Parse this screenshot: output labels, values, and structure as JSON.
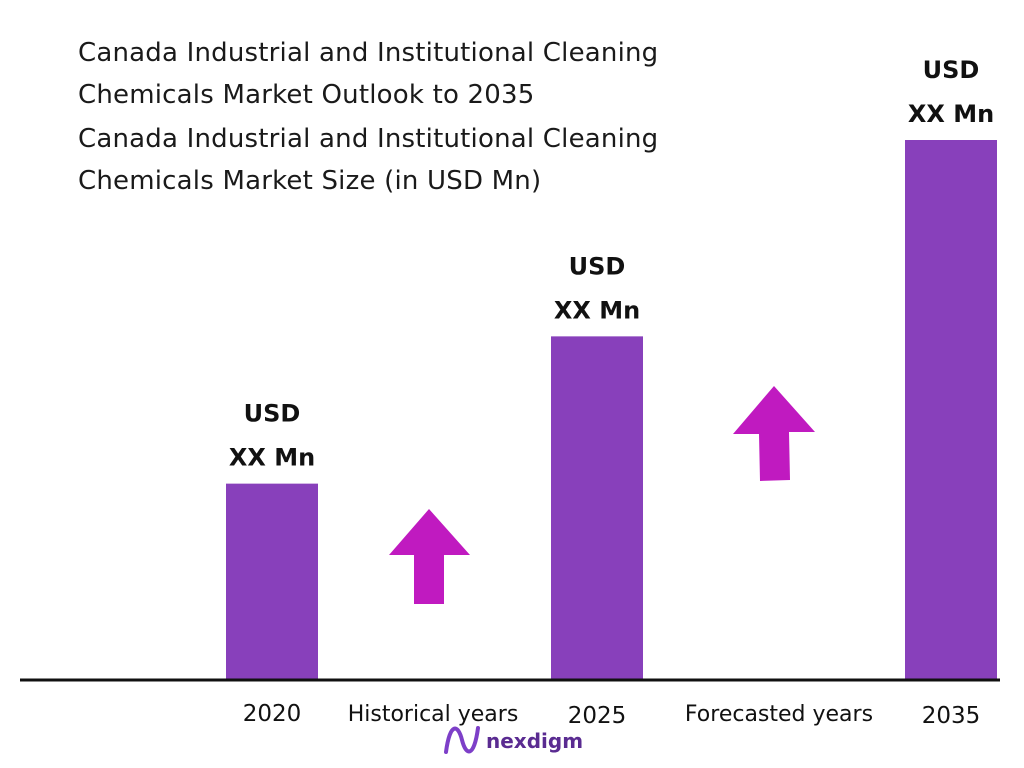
{
  "title": {
    "line1": "Canada Industrial and Institutional Cleaning",
    "line2": "Chemicals Market Outlook to 2035",
    "line3": "Canada Industrial and Institutional Cleaning",
    "line4": "Chemicals Market Size (in USD Mn)"
  },
  "chart_data": {
    "type": "bar",
    "categories": [
      "2020",
      "2025",
      "2035"
    ],
    "values": [
      40,
      70,
      110
    ],
    "value_labels": [
      [
        "USD",
        "XX Mn"
      ],
      [
        "USD",
        "XX Mn"
      ],
      [
        "USD",
        "XX Mn"
      ]
    ],
    "period_labels": [
      "Historical years",
      "Forecasted years"
    ],
    "ylim": [
      0,
      110
    ],
    "grid": false,
    "colors": {
      "bar": "#8840bb",
      "arrow": "#c01ac0",
      "brand": "#5a2b91"
    }
  },
  "brand": {
    "name": "nexdigm",
    "icon": "nexdigm-logo-icon"
  }
}
